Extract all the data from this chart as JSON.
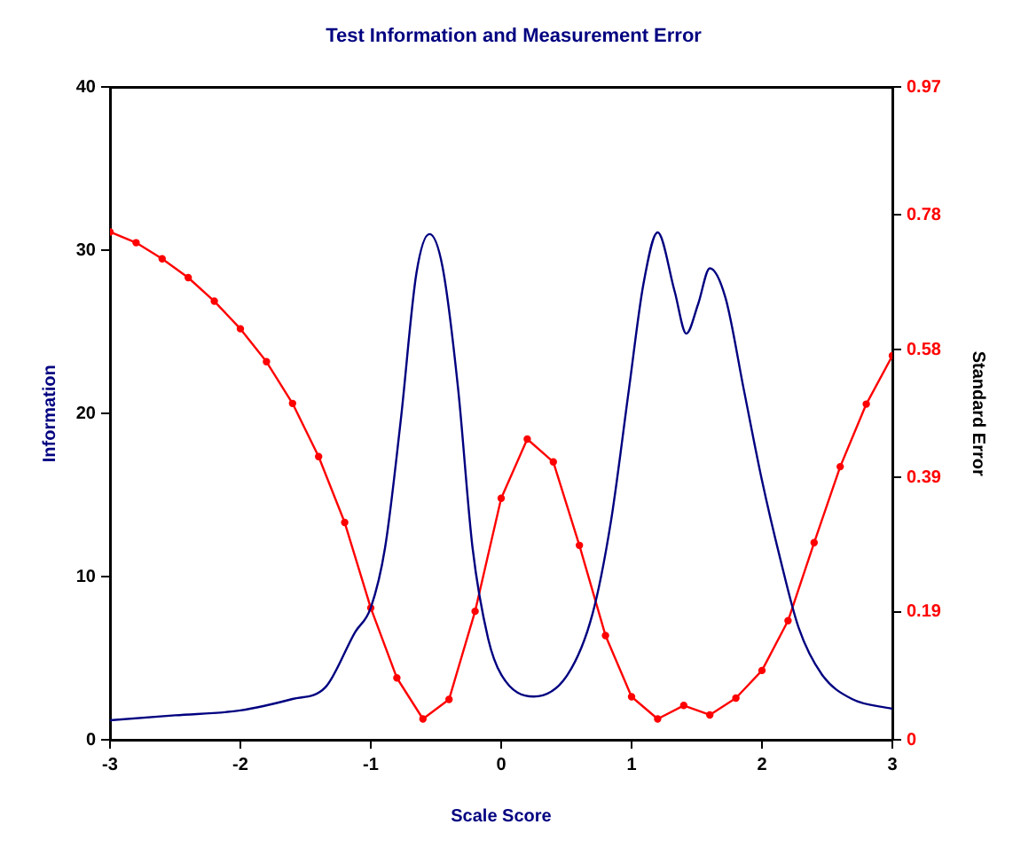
{
  "chart_data": {
    "type": "line",
    "title": "Test Information and Measurement Error",
    "xlabel": "Scale Score",
    "ylabel": "Information",
    "y2label": "Standard Error",
    "xlim": [
      -3,
      3
    ],
    "xticks": [
      -3,
      -2,
      -1,
      0,
      1,
      2,
      3
    ],
    "ylim": [
      0,
      40
    ],
    "yticks": [
      0,
      10,
      20,
      30,
      40
    ],
    "y2lim": [
      0,
      0.97
    ],
    "y2ticks": [
      0,
      0.19,
      0.39,
      0.58,
      0.78,
      0.97
    ],
    "grid": false,
    "legend": false,
    "series": [
      {
        "color": "#000080",
        "marker": "none",
        "x": [
          -3,
          -2.5,
          -2,
          -1.6,
          -1.35,
          -1.12,
          -1,
          -0.89,
          -0.77,
          -0.65,
          -0.55,
          -0.45,
          -0.33,
          -0.22,
          -0.1,
          0,
          0.25,
          0.51,
          0.7,
          0.84,
          0.98,
          1.09,
          1.2,
          1.33,
          1.42,
          1.51,
          1.6,
          1.72,
          1.86,
          2,
          2.14,
          2.28,
          2.46,
          2.69,
          3
        ],
        "values": [
          1.2,
          1.5,
          1.8,
          2.5,
          3.2,
          6.6,
          8.1,
          11.8,
          19.6,
          28.6,
          31,
          29,
          21.5,
          11.8,
          6.2,
          4,
          2.65,
          4,
          7.7,
          13.3,
          21.5,
          27.9,
          31.1,
          27.5,
          24.9,
          26.7,
          28.9,
          27.1,
          21.5,
          15.9,
          11.1,
          6.9,
          4,
          2.5,
          1.9
        ]
      },
      {
        "color": "#ff0000",
        "marker": "circle",
        "axis": "y2",
        "x": [
          -3,
          -2.8,
          -2.6,
          -2.4,
          -2.2,
          -2,
          -1.8,
          -1.6,
          -1.4,
          -1.2,
          -1,
          -0.8,
          -0.6,
          -0.4,
          -0.2,
          0,
          0.2,
          0.4,
          0.6,
          0.8,
          1,
          1.2,
          1.4,
          1.6,
          1.8,
          2,
          2.2,
          2.4,
          2.6,
          2.8,
          3
        ],
        "values": [
          0.755,
          0.739,
          0.715,
          0.687,
          0.652,
          0.611,
          0.562,
          0.5,
          0.421,
          0.323,
          0.196,
          0.092,
          0.031,
          0.06,
          0.191,
          0.359,
          0.447,
          0.413,
          0.289,
          0.155,
          0.064,
          0.031,
          0.051,
          0.037,
          0.062,
          0.103,
          0.177,
          0.293,
          0.406,
          0.499,
          0.571
        ]
      }
    ]
  }
}
